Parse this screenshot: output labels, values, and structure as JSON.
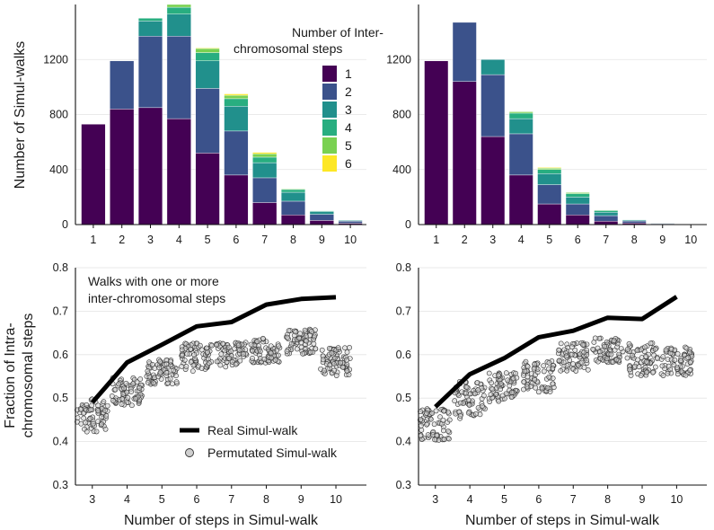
{
  "colors": {
    "s1": "#440154",
    "s2": "#3b528b",
    "s3": "#21908c",
    "s4": "#28ae80",
    "s5": "#7ad151",
    "s6": "#fde725",
    "point_fill": "#cfcfcf",
    "point_stroke": "#333333",
    "line": "#000000"
  },
  "top_ylabel": "Number of Simul-walks",
  "bottom_ylabel_lines": [
    "Fraction of Intra-",
    "chromosomal steps"
  ],
  "xlabel": "Number of steps in Simul-walk",
  "bar_legend": {
    "title_lines": [
      "Number of Inter-",
      "chromosomal steps"
    ],
    "entries": [
      "1",
      "2",
      "3",
      "4",
      "5",
      "6"
    ]
  },
  "line_legend": {
    "real": "Real Simul-walk",
    "perm": "Permutated Simul-walk"
  },
  "annotation_lines": [
    "Walks with one or more",
    "inter-chromosomal steps"
  ],
  "chart_data": [
    {
      "type": "bar",
      "panel": "top-left",
      "stacked": true,
      "categories": [
        "1",
        "2",
        "3",
        "4",
        "5",
        "6",
        "7",
        "8",
        "9",
        "10"
      ],
      "series": [
        {
          "name": "1",
          "values": [
            730,
            840,
            850,
            770,
            520,
            360,
            160,
            70,
            30,
            10
          ]
        },
        {
          "name": "2",
          "values": [
            0,
            350,
            520,
            600,
            470,
            320,
            180,
            100,
            45,
            15
          ]
        },
        {
          "name": "3",
          "values": [
            0,
            0,
            110,
            160,
            200,
            180,
            110,
            65,
            20,
            5
          ]
        },
        {
          "name": "4",
          "values": [
            0,
            0,
            20,
            50,
            60,
            55,
            40,
            20,
            5,
            0
          ]
        },
        {
          "name": "5",
          "values": [
            0,
            0,
            0,
            20,
            30,
            25,
            25,
            5,
            0,
            0
          ]
        },
        {
          "name": "6",
          "values": [
            0,
            0,
            0,
            0,
            5,
            10,
            10,
            0,
            0,
            0
          ]
        }
      ],
      "ylabel": "Number of Simul-walks",
      "ylim": [
        0,
        1600
      ],
      "yticks": [
        0,
        400,
        800,
        1200
      ],
      "legend": "top-right"
    },
    {
      "type": "bar",
      "panel": "top-right",
      "stacked": true,
      "categories": [
        "1",
        "2",
        "3",
        "4",
        "5",
        "6",
        "7",
        "8",
        "9",
        "10"
      ],
      "series": [
        {
          "name": "1",
          "values": [
            1190,
            1040,
            640,
            360,
            150,
            70,
            25,
            12,
            4,
            1
          ]
        },
        {
          "name": "2",
          "values": [
            0,
            430,
            450,
            300,
            140,
            80,
            40,
            14,
            5,
            1
          ]
        },
        {
          "name": "3",
          "values": [
            0,
            0,
            110,
            110,
            80,
            50,
            25,
            7,
            2,
            1
          ]
        },
        {
          "name": "4",
          "values": [
            0,
            0,
            0,
            40,
            30,
            25,
            12,
            3,
            1,
            0
          ]
        },
        {
          "name": "5",
          "values": [
            0,
            0,
            0,
            10,
            10,
            8,
            4,
            0,
            0,
            0
          ]
        },
        {
          "name": "6",
          "values": [
            0,
            0,
            0,
            0,
            5,
            2,
            1,
            0,
            0,
            0
          ]
        }
      ],
      "ylim": [
        0,
        1600
      ],
      "yticks": [
        0,
        400,
        800,
        1200
      ]
    },
    {
      "type": "line",
      "panel": "bottom-left",
      "x": [
        3,
        4,
        5,
        6,
        7,
        8,
        9,
        10
      ],
      "series": [
        {
          "name": "Real Simul-walk",
          "values": [
            0.49,
            0.582,
            0.623,
            0.665,
            0.675,
            0.715,
            0.728,
            0.732
          ]
        }
      ],
      "permutated": {
        "name": "Permutated Simul-walk",
        "type": "scatter",
        "centers": [
          0.46,
          0.515,
          0.56,
          0.595,
          0.6,
          0.605,
          0.635,
          0.585
        ],
        "ranges": [
          [
            0.42,
            0.5
          ],
          [
            0.48,
            0.55
          ],
          [
            0.53,
            0.59
          ],
          [
            0.56,
            0.63
          ],
          [
            0.57,
            0.63
          ],
          [
            0.58,
            0.64
          ],
          [
            0.6,
            0.66
          ],
          [
            0.55,
            0.62
          ]
        ]
      },
      "xlabel": "Number of steps in Simul-walk",
      "ylabel": "Fraction of Intra-chromosomal steps",
      "ylim": [
        0.3,
        0.8
      ],
      "yticks": [
        0.3,
        0.4,
        0.5,
        0.6,
        0.7,
        0.8
      ],
      "xticks": [
        3,
        4,
        5,
        6,
        7,
        8,
        9,
        10
      ],
      "legend": "bottom-center"
    },
    {
      "type": "line",
      "panel": "bottom-right",
      "x": [
        3,
        4,
        5,
        6,
        7,
        8,
        9,
        10
      ],
      "series": [
        {
          "name": "Real Simul-walk",
          "values": [
            0.48,
            0.555,
            0.592,
            0.64,
            0.655,
            0.685,
            0.682,
            0.733
          ]
        }
      ],
      "permutated": {
        "name": "Permutated Simul-walk",
        "type": "scatter",
        "centers": [
          0.445,
          0.49,
          0.52,
          0.55,
          0.59,
          0.605,
          0.59,
          0.585
        ],
        "ranges": [
          [
            0.4,
            0.48
          ],
          [
            0.45,
            0.54
          ],
          [
            0.49,
            0.56
          ],
          [
            0.51,
            0.59
          ],
          [
            0.56,
            0.63
          ],
          [
            0.58,
            0.64
          ],
          [
            0.55,
            0.63
          ],
          [
            0.55,
            0.62
          ]
        ]
      },
      "xlabel": "Number of steps in Simul-walk",
      "ylim": [
        0.3,
        0.8
      ],
      "yticks": [
        0.3,
        0.4,
        0.5,
        0.6,
        0.7,
        0.8
      ],
      "xticks": [
        3,
        4,
        5,
        6,
        7,
        8,
        9,
        10
      ]
    }
  ]
}
